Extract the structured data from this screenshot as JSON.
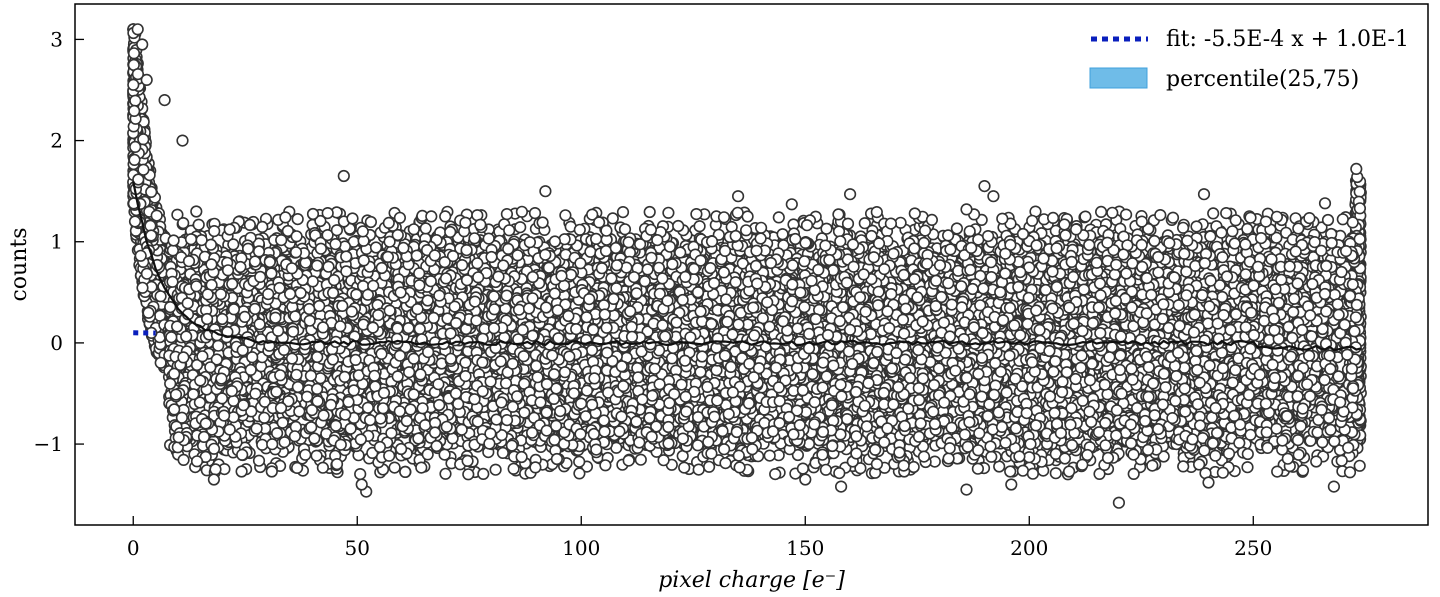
{
  "chart_data": {
    "type": "scatter",
    "xlabel": "pixel charge [e⁻]",
    "ylabel": "counts",
    "xlim": [
      -13,
      289
    ],
    "ylim": [
      -1.8,
      3.35
    ],
    "xticks": [
      0,
      50,
      100,
      150,
      200,
      250
    ],
    "yticks": [
      -1,
      0,
      1,
      2,
      3
    ],
    "xtick_labels": [
      "0",
      "50",
      "100",
      "150",
      "200",
      "250"
    ],
    "ytick_labels": [
      "−1",
      "0",
      "1",
      "2",
      "3"
    ],
    "grid": false,
    "legend_position": "top-right",
    "series": [
      {
        "name": "fit: -5.5E-4 x + 1.0E-1",
        "kind": "line",
        "style": "dotted",
        "color": "#0a1fbd",
        "slope": -0.00055,
        "intercept": 0.1,
        "x": [
          0,
          5
        ]
      },
      {
        "name": "percentile(25,75)",
        "kind": "band",
        "color": "#6fbce8",
        "edge_color": "#3fa0dd"
      },
      {
        "name": "data",
        "kind": "scatter",
        "marker": "open-circle",
        "edge_color": "#333333",
        "x_range": [
          0,
          274
        ],
        "y_range": [
          -1.6,
          3.1
        ],
        "approx_points": 12000,
        "outliers": [
          [
            1,
            3.1
          ],
          [
            2,
            2.95
          ],
          [
            3,
            2.6
          ],
          [
            7,
            2.4
          ],
          [
            11,
            2.0
          ],
          [
            47,
            1.65
          ],
          [
            52,
            -1.47
          ],
          [
            51,
            -1.4
          ],
          [
            92,
            1.5
          ],
          [
            135,
            1.45
          ],
          [
            147,
            1.37
          ],
          [
            160,
            1.47
          ],
          [
            150,
            -1.35
          ],
          [
            158,
            -1.42
          ],
          [
            186,
            1.32
          ],
          [
            190,
            1.55
          ],
          [
            192,
            1.45
          ],
          [
            186,
            -1.45
          ],
          [
            196,
            -1.4
          ],
          [
            220,
            -1.58
          ],
          [
            239,
            1.47
          ],
          [
            240,
            -1.38
          ],
          [
            266,
            1.38
          ],
          [
            268,
            -1.42
          ],
          [
            273,
            1.72
          ],
          [
            18,
            -1.35
          ]
        ]
      }
    ]
  }
}
